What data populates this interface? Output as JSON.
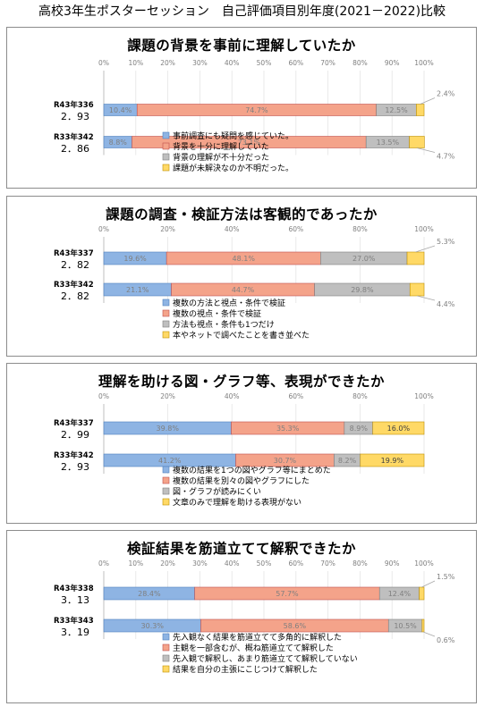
{
  "title": "高校3年生ポスターセッション　自己評価項目別年度(2021－2022)比較",
  "colors": [
    "#8eb4e3",
    "#f4a38a",
    "#bfbfbf",
    "#ffd966"
  ],
  "chart_data": [
    {
      "type": "bar",
      "stacked": "horizontal-100%",
      "title": "課題の背景を事前に理解していたか",
      "xlim": [
        0,
        100
      ],
      "ticks": [
        "0%",
        "10%",
        "20%",
        "30%",
        "40%",
        "50%",
        "60%",
        "70%",
        "80%",
        "90%",
        "100%"
      ],
      "rows": [
        {
          "head": "R43年336",
          "score": "2．93",
          "values": [
            10.4,
            74.7,
            12.5,
            2.4
          ],
          "labels": [
            "10.4%",
            "74.7%",
            "12.5%",
            "2.4%"
          ]
        },
        {
          "head": "R33年342",
          "score": "2．86",
          "values": [
            8.8,
            73.1,
            13.5,
            4.7
          ],
          "labels": [
            "8.8%",
            "73.1%",
            "13.5%",
            "4.7%"
          ]
        }
      ],
      "legend": [
        "事前調査にも疑問を感じていた。",
        "背景を十分に理解していた",
        "背景の理解が不十分だった",
        "課題が未解決なのか不明だった。"
      ]
    },
    {
      "type": "bar",
      "stacked": "horizontal-100%",
      "title": "課題の調査・検証方法は客観的であったか",
      "xlim": [
        0,
        100
      ],
      "ticks": [
        "0%",
        "20%",
        "40%",
        "60%",
        "80%",
        "100%"
      ],
      "rows": [
        {
          "head": "R43年337",
          "score": "2．82",
          "values": [
            19.6,
            48.1,
            27.0,
            5.3
          ],
          "labels": [
            "19.6%",
            "48.1%",
            "27.0%",
            "5.3%"
          ]
        },
        {
          "head": "R33年342",
          "score": "2．82",
          "values": [
            21.1,
            44.7,
            29.8,
            4.4
          ],
          "labels": [
            "21.1%",
            "44.7%",
            "29.8%",
            "4.4%"
          ]
        }
      ],
      "legend": [
        "複数の方法と視点・条件で検証",
        "複数の視点・条件で検証",
        "方法も視点・条件も1つだけ",
        "本やネットで調べたことを書き並べた"
      ]
    },
    {
      "type": "bar",
      "stacked": "horizontal-100%",
      "title": "理解を助ける図・グラフ等、表現ができたか",
      "xlim": [
        0,
        100
      ],
      "ticks": [
        "0%",
        "20%",
        "40%",
        "60%",
        "80%",
        "100%"
      ],
      "rows": [
        {
          "head": "R43年337",
          "score": "2．99",
          "values": [
            39.8,
            35.3,
            8.9,
            16.0
          ],
          "labels": [
            "39.8%",
            "35.3%",
            "8.9%",
            "16.0%"
          ]
        },
        {
          "head": "R33年342",
          "score": "2．93",
          "values": [
            41.2,
            30.7,
            8.2,
            19.9
          ],
          "labels": [
            "41.2%",
            "30.7%",
            "8.2%",
            "19.9%"
          ]
        }
      ],
      "legend": [
        "複数の結果を1つの図やグラフ等にまとめた",
        "複数の結果を別々の図やグラフにした",
        "図・グラフが読みにくい",
        "文章のみで理解を助ける表現がない"
      ]
    },
    {
      "type": "bar",
      "stacked": "horizontal-100%",
      "title": "検証結果を筋道立てて解釈できたか",
      "xlim": [
        0,
        100
      ],
      "ticks": [
        "0%",
        "10%",
        "20%",
        "30%",
        "40%",
        "50%",
        "60%",
        "70%",
        "80%",
        "90%",
        "100%"
      ],
      "rows": [
        {
          "head": "R43年338",
          "score": "3．13",
          "values": [
            28.4,
            57.7,
            12.4,
            1.5
          ],
          "labels": [
            "28.4%",
            "57.7%",
            "12.4%",
            "1.5%"
          ]
        },
        {
          "head": "R33年343",
          "score": "3．19",
          "values": [
            30.3,
            58.6,
            10.5,
            0.6
          ],
          "labels": [
            "30.3%",
            "58.6%",
            "10.5%",
            "0.6%"
          ]
        }
      ],
      "legend": [
        "先入観なく結果を筋道立てて多角的に解釈した",
        "主観を一部含むが、概ね筋道立てて解釈した",
        "先入観で解釈し、あまり筋道立てて解釈していない",
        "結果を自分の主張にこじつけて解釈した"
      ]
    }
  ]
}
